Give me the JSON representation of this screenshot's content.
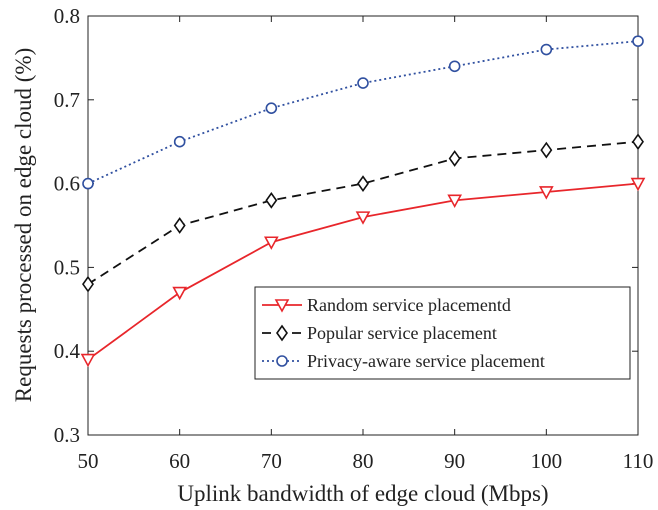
{
  "chart_data": {
    "type": "line",
    "xlabel": "Uplink bandwidth of edge cloud (Mbps)",
    "ylabel": "Requests processed on edge cloud (%)",
    "x": [
      50,
      60,
      70,
      80,
      90,
      100,
      110
    ],
    "xlim": [
      50,
      110
    ],
    "ylim": [
      0.3,
      0.8
    ],
    "xticks": [
      50,
      60,
      70,
      80,
      90,
      100,
      110
    ],
    "yticks": [
      0.3,
      0.4,
      0.5,
      0.6,
      0.7,
      0.8
    ],
    "ytick_labels": [
      "0.3",
      "0.4",
      "0.5",
      "0.6",
      "0.7",
      "0.8"
    ],
    "grid": false,
    "legend_position": "lower-right",
    "series": [
      {
        "name": "Random service placementd",
        "values": [
          0.39,
          0.47,
          0.53,
          0.56,
          0.58,
          0.59,
          0.6
        ],
        "color": "#e8262b",
        "line_style": "solid",
        "marker": "triangle-down"
      },
      {
        "name": "Popular service placement",
        "values": [
          0.48,
          0.55,
          0.58,
          0.6,
          0.63,
          0.64,
          0.65
        ],
        "color": "#111111",
        "line_style": "dashed",
        "marker": "diamond"
      },
      {
        "name": "Privacy-aware service placement",
        "values": [
          0.6,
          0.65,
          0.69,
          0.72,
          0.74,
          0.76,
          0.77
        ],
        "color": "#3050a0",
        "line_style": "dotted",
        "marker": "circle"
      }
    ]
  }
}
